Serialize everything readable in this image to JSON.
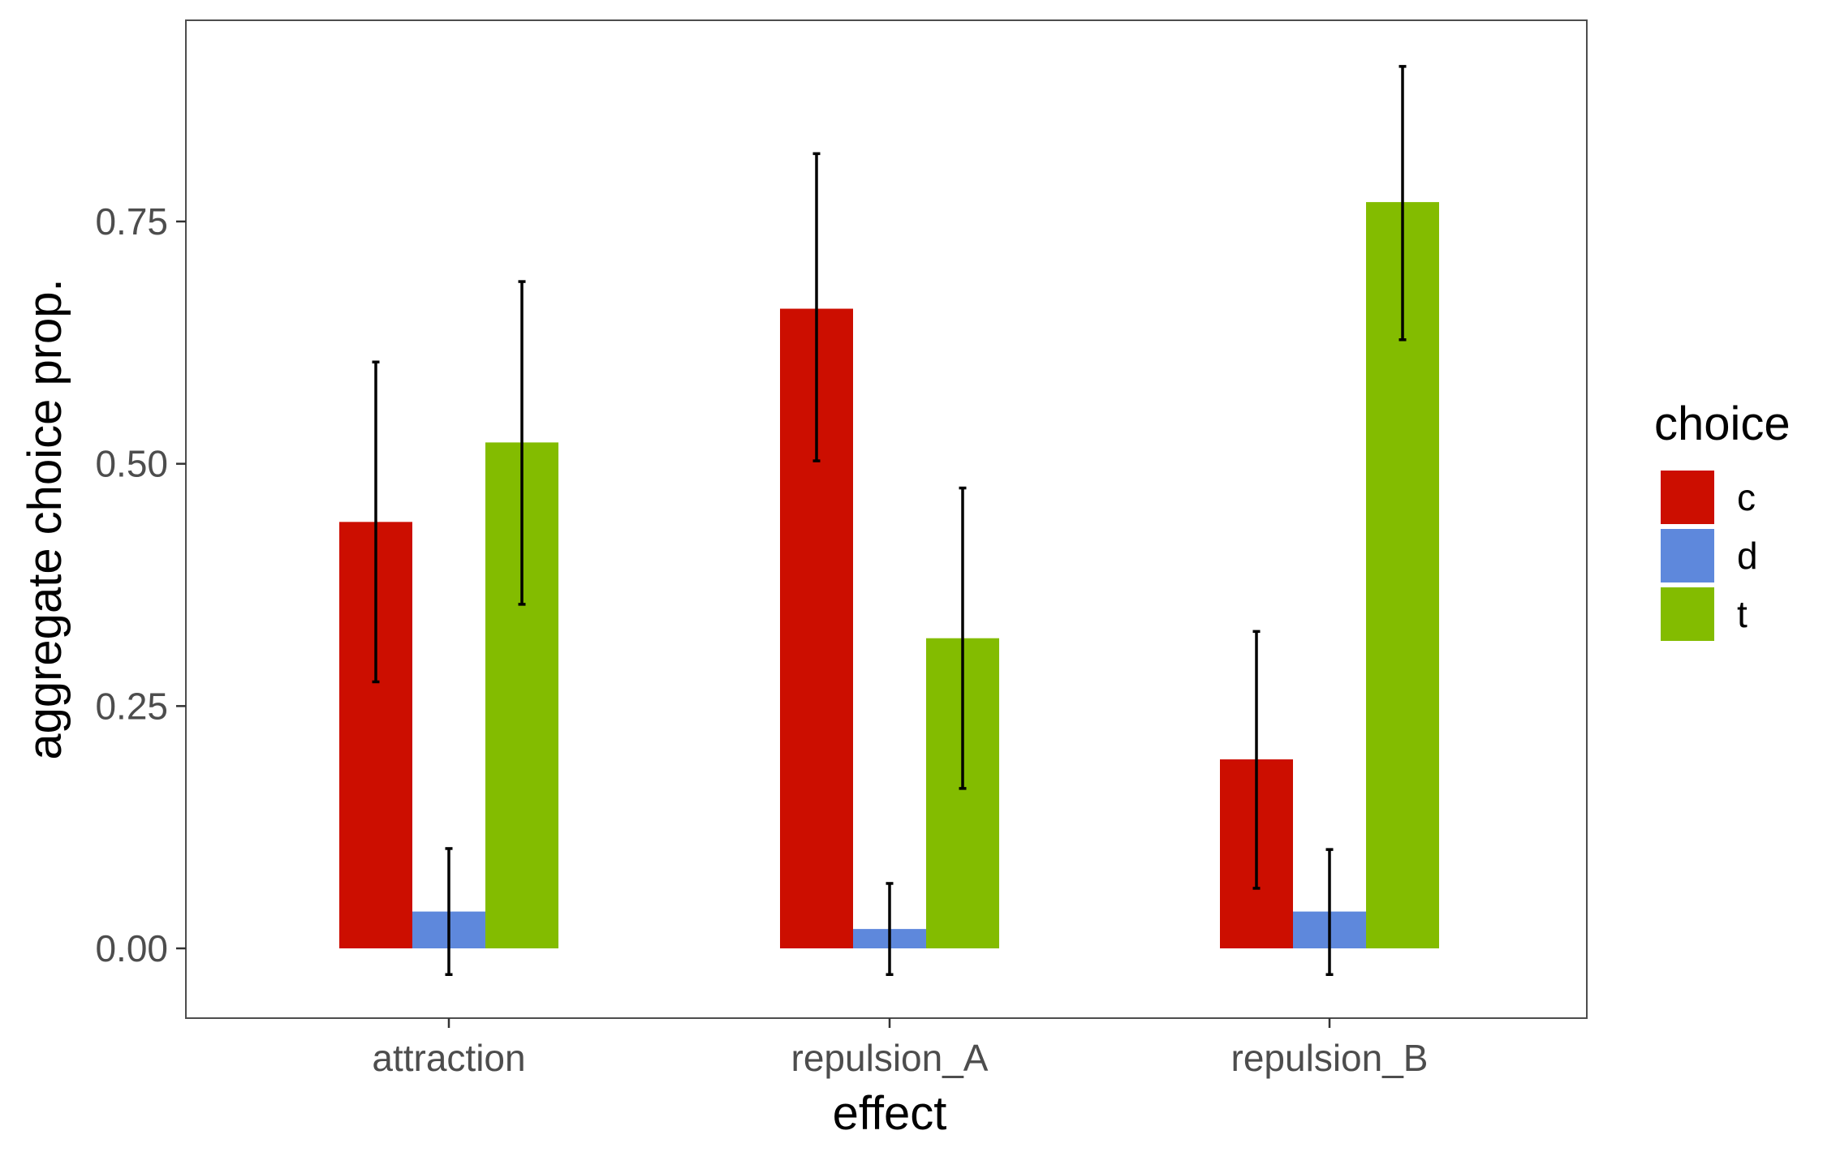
{
  "chart_data": {
    "type": "bar",
    "xlabel": "effect",
    "ylabel": "aggregate choice prop.",
    "categories": [
      "attraction",
      "repulsion_A",
      "repulsion_B"
    ],
    "ylim": [
      -0.07,
      0.96
    ],
    "yticks": [
      "0.00",
      "0.25",
      "0.50",
      "0.75"
    ],
    "yticks_values": [
      0,
      0.25,
      0.5,
      0.75
    ],
    "grid": false,
    "legend": {
      "title": "choice",
      "position": "right"
    },
    "series": [
      {
        "name": "c",
        "color": "#cc0e00",
        "values": [
          0.44,
          0.66,
          0.195
        ],
        "err_low": [
          0.275,
          0.503,
          0.062
        ],
        "err_high": [
          0.605,
          0.82,
          0.327
        ]
      },
      {
        "name": "d",
        "color": "#5e88dc",
        "values": [
          0.038,
          0.02,
          0.038
        ],
        "err_low": [
          -0.027,
          -0.027,
          -0.027
        ],
        "err_high": [
          0.103,
          0.067,
          0.102
        ]
      },
      {
        "name": "t",
        "color": "#83bc00",
        "values": [
          0.522,
          0.32,
          0.77
        ],
        "err_low": [
          0.355,
          0.165,
          0.628
        ],
        "err_high": [
          0.688,
          0.475,
          0.91
        ]
      }
    ]
  }
}
